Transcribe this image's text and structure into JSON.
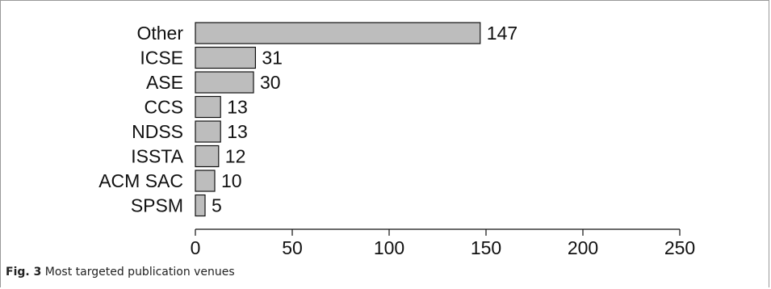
{
  "caption": {
    "label": "Fig. 3",
    "text": "Most targeted publication venues"
  },
  "chart_data": {
    "type": "bar",
    "orientation": "horizontal",
    "categories": [
      "Other",
      "ICSE",
      "ASE",
      "CCS",
      "NDSS",
      "ISSTA",
      "ACM SAC",
      "SPSM"
    ],
    "values": [
      147,
      31,
      30,
      13,
      13,
      12,
      10,
      5
    ],
    "value_labels": [
      "147",
      "31",
      "30",
      "13",
      "13",
      "12",
      "10",
      "5"
    ],
    "xlim": [
      0,
      250
    ],
    "xticks": [
      0,
      50,
      100,
      150,
      200,
      250
    ],
    "xtick_labels": [
      "0",
      "50",
      "100",
      "150",
      "200",
      "250"
    ],
    "grid": false,
    "bar_color": "#bdbdbd"
  }
}
